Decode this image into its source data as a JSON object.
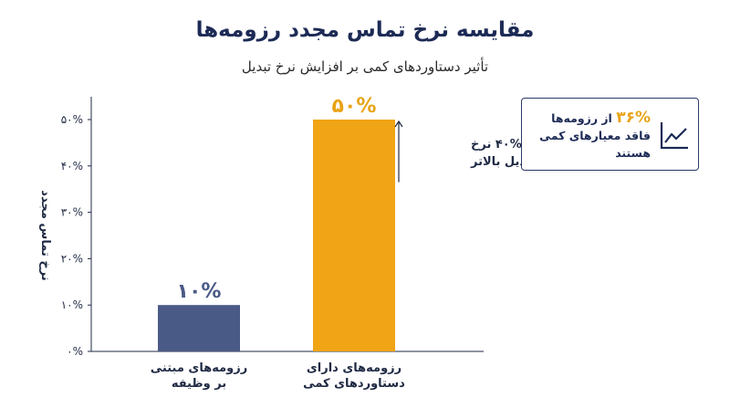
{
  "title": "مقایسه نرخ تماس مجدد رزومه‌ها",
  "subtitle": "تأثیر دستاوردهای کمی بر افزایش نرخ تبدیل",
  "chart_data": {
    "type": "bar",
    "categories": [
      [
        "رزومه‌های مبتنی",
        "بر وظیفه"
      ],
      [
        "رزومه‌های دارای",
        "دستاوردهای کمی"
      ]
    ],
    "values": [
      10,
      50
    ],
    "value_labels": [
      "۱۰%",
      "۵۰%"
    ],
    "colors": [
      "#4a5a86",
      "#f0a416"
    ],
    "value_label_colors": [
      "#4a5a86",
      "#e8a417"
    ],
    "ylabel": "نرخ تماس مجدد",
    "ylim": [
      0,
      50
    ],
    "yticks": [
      0,
      10,
      20,
      30,
      40,
      50
    ],
    "ytick_labels": [
      "۰%",
      "۱۰%",
      "۲۰%",
      "۳۰%",
      "۴۰%",
      "۵۰%"
    ],
    "grid": false,
    "annotation": {
      "lines": [
        "۴۰% نرخ",
        "تبدیل بالاتر"
      ],
      "from_value": 10,
      "to_value": 50
    }
  },
  "callout": {
    "pct": "۳۶%",
    "text1": " از رزومه‌ها",
    "text2": "فاقد معیارهای کمی",
    "text3": "هستند",
    "icon": "trend-chart-icon",
    "border_color": "#2a3a66"
  }
}
